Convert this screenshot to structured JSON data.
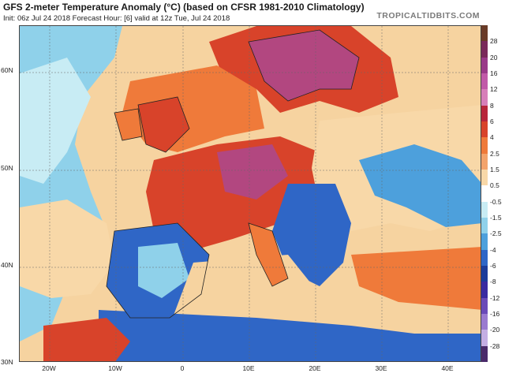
{
  "header": {
    "title": "GFS 2-meter Temperature Anomaly (°C) (based on CFSR 1981-2010 Climatology)",
    "subtitle": "Init: 06z Jul 24 2018   Forecast Hour: [6]   valid at 12z Tue, Jul 24 2018",
    "brand": "TROPICALTIDBITS.COM"
  },
  "map": {
    "lat_labels": [
      "60N",
      "50N",
      "40N",
      "30N"
    ],
    "lon_labels": [
      "20W",
      "10W",
      "0",
      "10E",
      "20E",
      "30E",
      "40E"
    ],
    "colors": {
      "land_warm": "#d8432a",
      "land_hot": "#a62a3a",
      "land_very_hot": "#b24780",
      "sea_warm": "#f3a36b",
      "sea_neutral": "#f6d3a0",
      "cool": "#8fd1ea",
      "cold": "#2f66c6",
      "very_cold": "#1c3b9a",
      "borders": "#222222"
    }
  },
  "colorbar": {
    "labels": [
      "28",
      "20",
      "16",
      "12",
      "8",
      "6",
      "4",
      "2.5",
      "1.5",
      "0.5",
      "-0.5",
      "-1.5",
      "-2.5",
      "-4",
      "-6",
      "-8",
      "-12",
      "-16",
      "-20",
      "-28"
    ],
    "colors": [
      "#6a3b28",
      "#7a2a5a",
      "#9a3a88",
      "#c15aa8",
      "#d77fb9",
      "#b8263a",
      "#d8432a",
      "#ef7a3a",
      "#f3a36b",
      "#f8d8a8",
      "#ffffff",
      "#c8ecf4",
      "#8fd1ea",
      "#4da0dc",
      "#2f66c6",
      "#1c3b9a",
      "#3a2aa0",
      "#6a4ab8",
      "#9a7ad0",
      "#c4aee3",
      "#4a2a6a"
    ]
  }
}
